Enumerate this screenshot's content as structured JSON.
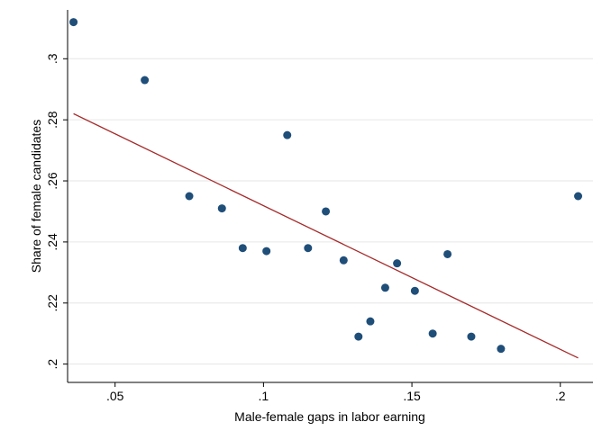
{
  "chart_data": {
    "type": "scatter",
    "xlabel": "Male-female gaps in labor earning",
    "ylabel": "Share of female candidates",
    "xlim": [
      0.034,
      0.211
    ],
    "ylim": [
      0.194,
      0.316
    ],
    "grid": true,
    "x_ticks": [
      0.05,
      0.1,
      0.15,
      0.2
    ],
    "x_tick_labels": [
      ".05",
      ".1",
      ".15",
      ".2"
    ],
    "y_ticks": [
      0.2,
      0.22,
      0.24,
      0.26,
      0.28,
      0.3
    ],
    "y_tick_labels": [
      ".2",
      ".22",
      ".24",
      ".26",
      ".28",
      ".3"
    ],
    "colors": {
      "points": "#1f4e79",
      "fit_line": "#a52a2a",
      "grid": "#e6e6e6",
      "axis": "#000000"
    },
    "series": [
      {
        "kind": "points",
        "x": [
          0.036,
          0.06,
          0.075,
          0.086,
          0.093,
          0.101,
          0.108,
          0.115,
          0.121,
          0.127,
          0.132,
          0.136,
          0.141,
          0.145,
          0.151,
          0.157,
          0.162,
          0.17,
          0.18,
          0.206
        ],
        "y": [
          0.312,
          0.293,
          0.255,
          0.251,
          0.238,
          0.237,
          0.275,
          0.238,
          0.25,
          0.234,
          0.209,
          0.214,
          0.225,
          0.233,
          0.224,
          0.21,
          0.236,
          0.209,
          0.205,
          0.255
        ]
      },
      {
        "kind": "fit_line",
        "x": [
          0.036,
          0.206
        ],
        "y": [
          0.282,
          0.202
        ]
      }
    ]
  }
}
